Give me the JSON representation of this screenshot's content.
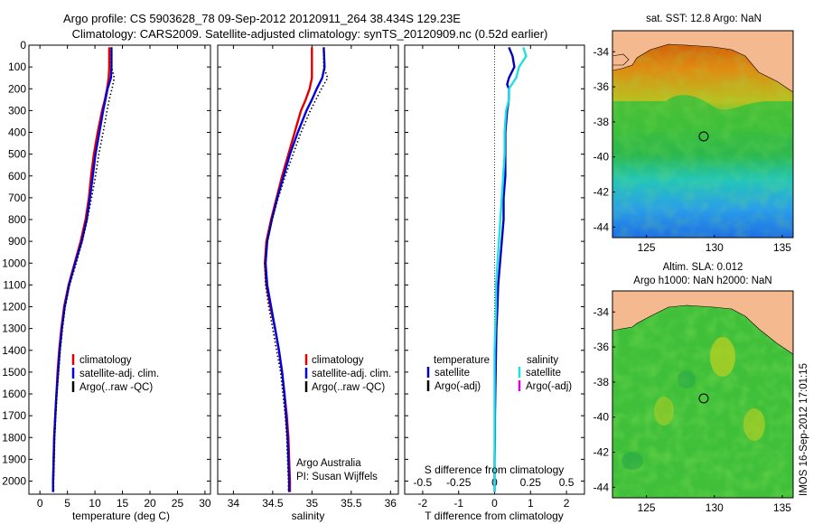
{
  "header": {
    "line1": "Argo profile: CS 5903628_78 09-Sep-2012 20120911_264 38.434S 129.23E",
    "line2": "Climatology: CARS2009. Satellite-adjusted climatology: synTS_20120909.nc (0.52d earlier)"
  },
  "colors": {
    "climatology": "#e00000",
    "satellite_adj": "#0000e0",
    "argo": "#000000",
    "temperature_satellite": "#0000c0",
    "salinity_satellite": "#22e0e0",
    "salinity_argo": "#e000e0",
    "land": "#f4b98e"
  },
  "chart_data": [
    {
      "type": "line",
      "id": "temperature",
      "xlabel": "temperature (deg C)",
      "ylabel": "",
      "xlim": [
        -2,
        31
      ],
      "ylim": [
        2060,
        0
      ],
      "xticks": [
        "0",
        "5",
        "10",
        "15",
        "20",
        "25",
        "30"
      ],
      "yticks": [
        "0",
        "100",
        "200",
        "300",
        "400",
        "500",
        "600",
        "700",
        "800",
        "900",
        "1000",
        "1100",
        "1200",
        "1300",
        "1400",
        "1500",
        "1600",
        "1700",
        "1800",
        "1900",
        "2000"
      ],
      "legend": [
        "climatology",
        "satellite-adj. clim.",
        "Argo(..raw -QC)"
      ],
      "depth": [
        10,
        100,
        150,
        200,
        250,
        300,
        400,
        500,
        600,
        700,
        800,
        900,
        1000,
        1100,
        1200,
        1300,
        1400,
        1500,
        1600,
        1700,
        1800,
        1900,
        2000,
        2050
      ],
      "series": [
        {
          "name": "climatology",
          "values": [
            12.6,
            12.6,
            12.5,
            12.2,
            11.8,
            11.3,
            10.5,
            9.8,
            9.3,
            8.9,
            8.3,
            7.4,
            6.3,
            5.2,
            4.4,
            3.9,
            3.5,
            3.2,
            3.0,
            2.8,
            2.6,
            2.5,
            2.4,
            2.4
          ]
        },
        {
          "name": "satellite-adj. clim.",
          "values": [
            13.0,
            13.0,
            12.9,
            12.3,
            11.9,
            11.5,
            10.8,
            10.1,
            9.6,
            9.1,
            8.5,
            7.6,
            6.4,
            5.3,
            4.5,
            4.0,
            3.6,
            3.3,
            3.0,
            2.8,
            2.6,
            2.5,
            2.4,
            2.4
          ]
        },
        {
          "name": "Argo(..raw -QC)",
          "values": [
            13.0,
            13.0,
            13.5,
            13.1,
            12.6,
            12.2,
            11.5,
            10.7,
            10.1,
            9.4,
            8.6,
            7.7,
            6.6,
            5.4,
            4.6,
            4.1,
            3.7,
            3.4,
            3.1,
            2.9,
            2.7,
            2.6,
            2.5,
            2.5
          ]
        }
      ]
    },
    {
      "type": "line",
      "id": "salinity",
      "xlabel": "salinity",
      "xlim": [
        33.8,
        36.1
      ],
      "ylim": [
        2060,
        0
      ],
      "xticks": [
        "34",
        "34.5",
        "35",
        "35.5",
        "36"
      ],
      "legend": [
        "climatology",
        "satellite-adj. clim.",
        "Argo(..raw -QC)"
      ],
      "annotation": [
        "Argo Australia",
        "PI: Susan Wijffels"
      ],
      "depth": [
        10,
        100,
        150,
        200,
        250,
        300,
        400,
        500,
        600,
        700,
        800,
        900,
        1000,
        1100,
        1200,
        1300,
        1400,
        1500,
        1600,
        1700,
        1800,
        1900,
        2000,
        2050
      ],
      "series": [
        {
          "name": "climatology",
          "values": [
            35.0,
            35.0,
            35.0,
            34.97,
            34.92,
            34.86,
            34.78,
            34.7,
            34.62,
            34.55,
            34.48,
            34.42,
            34.4,
            34.42,
            34.47,
            34.53,
            34.58,
            34.62,
            34.65,
            34.68,
            34.7,
            34.71,
            34.72,
            34.72
          ]
        },
        {
          "name": "satellite-adj. clim.",
          "values": [
            35.15,
            35.16,
            35.13,
            35.06,
            35.0,
            34.93,
            34.82,
            34.72,
            34.64,
            34.56,
            34.49,
            34.43,
            34.41,
            34.43,
            34.48,
            34.53,
            34.58,
            34.62,
            34.65,
            34.67,
            34.69,
            34.7,
            34.71,
            34.71
          ]
        },
        {
          "name": "Argo(..raw -QC)",
          "values": [
            35.15,
            35.15,
            35.2,
            35.12,
            35.05,
            34.98,
            34.86,
            34.76,
            34.66,
            34.57,
            34.49,
            34.43,
            34.4,
            34.41,
            34.45,
            34.5,
            34.55,
            34.6,
            34.63,
            34.66,
            34.68,
            34.69,
            34.7,
            34.7
          ]
        }
      ]
    },
    {
      "type": "line",
      "id": "difference",
      "xlabel": "T difference from climatology",
      "top_label": "S difference from climatology",
      "xlim": [
        -2.5,
        2.5
      ],
      "ylim": [
        2060,
        0
      ],
      "xticks": [
        "-2",
        "-1",
        "0",
        "1",
        "2"
      ],
      "sticks": [
        "-0.5",
        "-0.25",
        "0",
        "0.25",
        "0.5"
      ],
      "legend": {
        "temperature_header": "temperature",
        "salinity_header": "salinity",
        "temperature": [
          "satellite",
          "Argo(-adj)"
        ],
        "salinity": [
          "satellite",
          "Argo(-adj)"
        ]
      },
      "depth": [
        10,
        50,
        100,
        150,
        180,
        200,
        250,
        300,
        400,
        500,
        600,
        700,
        800,
        900,
        1000,
        1100,
        1200,
        1300,
        1400,
        1500,
        1600,
        1700,
        1800,
        1900,
        2000,
        2050
      ],
      "series": [
        {
          "name": "temperature satellite",
          "values": [
            0.4,
            0.5,
            0.55,
            0.4,
            0.35,
            0.4,
            0.4,
            0.35,
            0.3,
            0.3,
            0.3,
            0.25,
            0.25,
            0.2,
            0.15,
            0.1,
            0.08,
            0.05,
            0.04,
            0.03,
            0.02,
            0.01,
            0.01,
            0.0,
            0.0,
            0.0
          ]
        },
        {
          "name": "salinity satellite",
          "values": [
            0.2,
            0.22,
            0.17,
            0.15,
            0.12,
            0.1,
            0.1,
            0.08,
            0.07,
            0.07,
            0.06,
            0.05,
            0.04,
            0.03,
            0.02,
            0.01,
            0.01,
            0.005,
            0.0,
            0.0,
            0.0,
            0.0,
            0.0,
            0.0,
            0.0,
            0.0
          ]
        }
      ]
    }
  ],
  "maps": {
    "sst": {
      "title": "sat. SST: 12.8 Argo: NaN",
      "xticks": [
        "125",
        "130",
        "135"
      ],
      "yticks": [
        "-34",
        "-36",
        "-38",
        "-40",
        "-42",
        "-44"
      ]
    },
    "sla": {
      "title_line1": "Altim. SLA: 0.012",
      "title_line2": "Argo h1000: NaN h2000: NaN",
      "xticks": [
        "125",
        "130",
        "135"
      ],
      "yticks": [
        "-34",
        "-36",
        "-38",
        "-40",
        "-42",
        "-44"
      ]
    }
  },
  "footer": {
    "stamp": "IMOS 16-Sep-2012 17:01:15"
  }
}
